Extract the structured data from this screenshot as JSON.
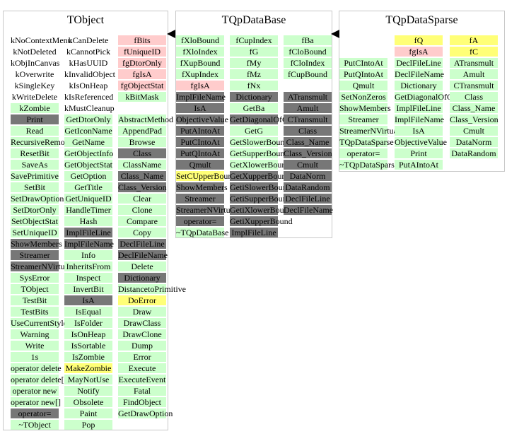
{
  "colors": {
    "green": "#ccffcc",
    "pink": "#ffcccc",
    "gray": "#777777",
    "yellow": "#ffff77",
    "border": "#c8c8c8"
  },
  "classes": [
    {
      "title": "TObject",
      "columns": [
        [
          {
            "t": "kNoContextMenu",
            "c": "none"
          },
          {
            "t": "kNotDeleted",
            "c": "none"
          },
          {
            "t": "kObjInCanvas",
            "c": "none"
          },
          {
            "t": "kOverwrite",
            "c": "none"
          },
          {
            "t": "kSingleKey",
            "c": "none"
          },
          {
            "t": "kWriteDelete",
            "c": "none"
          },
          {
            "t": "kZombie",
            "c": "green"
          },
          {
            "t": "Print",
            "c": "gray"
          },
          {
            "t": "Read",
            "c": "green"
          },
          {
            "t": "RecursiveRemove",
            "c": "green"
          },
          {
            "t": "ResetBit",
            "c": "green"
          },
          {
            "t": "SaveAs",
            "c": "green"
          },
          {
            "t": "SavePrimitive",
            "c": "green"
          },
          {
            "t": "SetBit",
            "c": "green"
          },
          {
            "t": "SetDrawOption",
            "c": "green"
          },
          {
            "t": "SetDtorOnly",
            "c": "green"
          },
          {
            "t": "SetObjectStat",
            "c": "green"
          },
          {
            "t": "SetUniqueID",
            "c": "green"
          },
          {
            "t": "ShowMembers",
            "c": "gray"
          },
          {
            "t": "Streamer",
            "c": "gray"
          },
          {
            "t": "StreamerNVirtual",
            "c": "gray"
          },
          {
            "t": "SysError",
            "c": "green"
          },
          {
            "t": "TObject",
            "c": "green"
          },
          {
            "t": "TestBit",
            "c": "green"
          },
          {
            "t": "TestBits",
            "c": "green"
          },
          {
            "t": "UseCurrentStyle",
            "c": "green"
          },
          {
            "t": "Warning",
            "c": "green"
          },
          {
            "t": "Write",
            "c": "green"
          },
          {
            "t": "1s",
            "c": "green"
          },
          {
            "t": "operator delete",
            "c": "green"
          },
          {
            "t": "operator delete[]",
            "c": "green"
          },
          {
            "t": "operator new",
            "c": "green"
          },
          {
            "t": "operator new[]",
            "c": "green"
          },
          {
            "t": "operator=",
            "c": "gray"
          },
          {
            "t": "~TObject",
            "c": "green"
          }
        ],
        [
          {
            "t": "kCanDelete",
            "c": "none"
          },
          {
            "t": "kCannotPick",
            "c": "none"
          },
          {
            "t": "kHasUUID",
            "c": "none"
          },
          {
            "t": "kInvalidObject",
            "c": "none"
          },
          {
            "t": "kIsOnHeap",
            "c": "none"
          },
          {
            "t": "kIsReferenced",
            "c": "none"
          },
          {
            "t": "kMustCleanup",
            "c": "none"
          },
          {
            "t": "GetDtorOnly",
            "c": "green"
          },
          {
            "t": "GetIconName",
            "c": "green"
          },
          {
            "t": "GetName",
            "c": "green"
          },
          {
            "t": "GetObjectInfo",
            "c": "green"
          },
          {
            "t": "GetObjectStat",
            "c": "green"
          },
          {
            "t": "GetOption",
            "c": "green"
          },
          {
            "t": "GetTitle",
            "c": "green"
          },
          {
            "t": "GetUniqueID",
            "c": "green"
          },
          {
            "t": "HandleTimer",
            "c": "green"
          },
          {
            "t": "Hash",
            "c": "green"
          },
          {
            "t": "ImplFileLine",
            "c": "gray"
          },
          {
            "t": "ImplFileName",
            "c": "gray"
          },
          {
            "t": "Info",
            "c": "green"
          },
          {
            "t": "InheritsFrom",
            "c": "green"
          },
          {
            "t": "Inspect",
            "c": "green"
          },
          {
            "t": "InvertBit",
            "c": "green"
          },
          {
            "t": "IsA",
            "c": "gray"
          },
          {
            "t": "IsEqual",
            "c": "green"
          },
          {
            "t": "IsFolder",
            "c": "green"
          },
          {
            "t": "IsOnHeap",
            "c": "green"
          },
          {
            "t": "IsSortable",
            "c": "green"
          },
          {
            "t": "IsZombie",
            "c": "green"
          },
          {
            "t": "MakeZombie",
            "c": "yellow"
          },
          {
            "t": "MayNotUse",
            "c": "green"
          },
          {
            "t": "Notify",
            "c": "green"
          },
          {
            "t": "Obsolete",
            "c": "green"
          },
          {
            "t": "Paint",
            "c": "green"
          },
          {
            "t": "Pop",
            "c": "green"
          }
        ],
        [
          {
            "t": "fBits",
            "c": "pink"
          },
          {
            "t": "fUniqueID",
            "c": "pink"
          },
          {
            "t": "fgDtorOnly",
            "c": "pink"
          },
          {
            "t": "fgIsA",
            "c": "pink"
          },
          {
            "t": "fgObjectStat",
            "c": "pink"
          },
          {
            "t": "kBitMask",
            "c": "green"
          },
          {
            "t": "",
            "c": "spacer"
          },
          {
            "t": "AbstractMethod",
            "c": "green"
          },
          {
            "t": "AppendPad",
            "c": "green"
          },
          {
            "t": "Browse",
            "c": "green"
          },
          {
            "t": "Class",
            "c": "gray"
          },
          {
            "t": "ClassName",
            "c": "green"
          },
          {
            "t": "Class_Name",
            "c": "gray"
          },
          {
            "t": "Class_Version",
            "c": "gray"
          },
          {
            "t": "Clear",
            "c": "green"
          },
          {
            "t": "Clone",
            "c": "green"
          },
          {
            "t": "Compare",
            "c": "green"
          },
          {
            "t": "Copy",
            "c": "green"
          },
          {
            "t": "DeclFileLine",
            "c": "gray"
          },
          {
            "t": "DeclFileName",
            "c": "gray"
          },
          {
            "t": "Delete",
            "c": "green"
          },
          {
            "t": "Dictionary",
            "c": "gray"
          },
          {
            "t": "DistancetoPrimitive",
            "c": "green"
          },
          {
            "t": "DoError",
            "c": "yellow"
          },
          {
            "t": "Draw",
            "c": "green"
          },
          {
            "t": "DrawClass",
            "c": "green"
          },
          {
            "t": "DrawClone",
            "c": "green"
          },
          {
            "t": "Dump",
            "c": "green"
          },
          {
            "t": "Error",
            "c": "green"
          },
          {
            "t": "Execute",
            "c": "green"
          },
          {
            "t": "ExecuteEvent",
            "c": "green"
          },
          {
            "t": "Fatal",
            "c": "green"
          },
          {
            "t": "FindObject",
            "c": "green"
          },
          {
            "t": "GetDrawOption",
            "c": "green"
          }
        ]
      ]
    },
    {
      "title": "TQpDataBase",
      "columns": [
        [
          {
            "t": "fXloBound",
            "c": "green"
          },
          {
            "t": "fXloIndex",
            "c": "green"
          },
          {
            "t": "fXupBound",
            "c": "green"
          },
          {
            "t": "fXupIndex",
            "c": "green"
          },
          {
            "t": "fgIsA",
            "c": "pink"
          },
          {
            "t": "ImplFileName",
            "c": "gray"
          },
          {
            "t": "IsA",
            "c": "gray"
          },
          {
            "t": "ObjectiveValue",
            "c": "gray"
          },
          {
            "t": "PutAIntoAt",
            "c": "gray"
          },
          {
            "t": "PutCIntoAt",
            "c": "gray"
          },
          {
            "t": "PutQIntoAt",
            "c": "gray"
          },
          {
            "t": "Qmult",
            "c": "gray"
          },
          {
            "t": "SetCUpperBound",
            "c": "yellow"
          },
          {
            "t": "ShowMembers",
            "c": "gray"
          },
          {
            "t": "Streamer",
            "c": "gray"
          },
          {
            "t": "StreamerNVirtual",
            "c": "gray"
          },
          {
            "t": "operator=",
            "c": "gray"
          },
          {
            "t": "~TQpDataBase",
            "c": "green"
          }
        ],
        [
          {
            "t": "fCupIndex",
            "c": "green"
          },
          {
            "t": "fG",
            "c": "green"
          },
          {
            "t": "fMy",
            "c": "green"
          },
          {
            "t": "fMz",
            "c": "green"
          },
          {
            "t": "fNx",
            "c": "green"
          },
          {
            "t": "Dictionary",
            "c": "gray"
          },
          {
            "t": "GetBa",
            "c": "green"
          },
          {
            "t": "GetDiagonalOfQ",
            "c": "gray"
          },
          {
            "t": "GetG",
            "c": "green"
          },
          {
            "t": "GetSlowerBound",
            "c": "green"
          },
          {
            "t": "GetSupperBound",
            "c": "green"
          },
          {
            "t": "GetXlowerBound",
            "c": "green"
          },
          {
            "t": "GetXupperBound",
            "c": "gray"
          },
          {
            "t": "GetiSlowerBound",
            "c": "gray"
          },
          {
            "t": "GetiSupperBound",
            "c": "gray"
          },
          {
            "t": "GetiXlowerBound",
            "c": "gray"
          },
          {
            "t": "GetiXupperBound",
            "c": "gray"
          },
          {
            "t": "ImplFileLine",
            "c": "gray"
          }
        ],
        [
          {
            "t": "fBa",
            "c": "green"
          },
          {
            "t": "fCloBound",
            "c": "green"
          },
          {
            "t": "fCloIndex",
            "c": "green"
          },
          {
            "t": "fCupBound",
            "c": "green"
          },
          {
            "t": "",
            "c": "spacer"
          },
          {
            "t": "ATransmult",
            "c": "gray"
          },
          {
            "t": "Amult",
            "c": "gray"
          },
          {
            "t": "CTransmult",
            "c": "gray"
          },
          {
            "t": "Class",
            "c": "gray"
          },
          {
            "t": "Class_Name",
            "c": "gray"
          },
          {
            "t": "Class_Version",
            "c": "gray"
          },
          {
            "t": "Cmult",
            "c": "gray"
          },
          {
            "t": "DataNorm",
            "c": "gray"
          },
          {
            "t": "DataRandom",
            "c": "gray"
          },
          {
            "t": "DeclFileLine",
            "c": "gray"
          },
          {
            "t": "DeclFileName",
            "c": "gray"
          }
        ]
      ]
    },
    {
      "title": "TQpDataSparse",
      "columns": [
        [
          {
            "t": "",
            "c": "spacer"
          },
          {
            "t": "",
            "c": "spacer"
          },
          {
            "t": "PutCIntoAt",
            "c": "green"
          },
          {
            "t": "PutQIntoAt",
            "c": "green"
          },
          {
            "t": "Qmult",
            "c": "green"
          },
          {
            "t": "SetNonZeros",
            "c": "green"
          },
          {
            "t": "ShowMembers",
            "c": "green"
          },
          {
            "t": "Streamer",
            "c": "green"
          },
          {
            "t": "StreamerNVirtual",
            "c": "green"
          },
          {
            "t": "TQpDataSparse",
            "c": "green"
          },
          {
            "t": "operator=",
            "c": "green"
          },
          {
            "t": "~TQpDataSparse",
            "c": "green"
          }
        ],
        [
          {
            "t": "fQ",
            "c": "yellow"
          },
          {
            "t": "fgIsA",
            "c": "pink"
          },
          {
            "t": "DeclFileLine",
            "c": "green"
          },
          {
            "t": "DeclFileName",
            "c": "green"
          },
          {
            "t": "Dictionary",
            "c": "green"
          },
          {
            "t": "GetDiagonalOfQ",
            "c": "green"
          },
          {
            "t": "ImplFileLine",
            "c": "green"
          },
          {
            "t": "ImplFileName",
            "c": "green"
          },
          {
            "t": "IsA",
            "c": "green"
          },
          {
            "t": "ObjectiveValue",
            "c": "green"
          },
          {
            "t": "Print",
            "c": "green"
          },
          {
            "t": "PutAIntoAt",
            "c": "green"
          }
        ],
        [
          {
            "t": "fA",
            "c": "yellow"
          },
          {
            "t": "fC",
            "c": "yellow"
          },
          {
            "t": "ATransmult",
            "c": "green"
          },
          {
            "t": "Amult",
            "c": "green"
          },
          {
            "t": "CTransmult",
            "c": "green"
          },
          {
            "t": "Class",
            "c": "green"
          },
          {
            "t": "Class_Name",
            "c": "green"
          },
          {
            "t": "Class_Version",
            "c": "green"
          },
          {
            "t": "Cmult",
            "c": "green"
          },
          {
            "t": "DataNorm",
            "c": "green"
          },
          {
            "t": "DataRandom",
            "c": "green"
          }
        ]
      ]
    }
  ]
}
